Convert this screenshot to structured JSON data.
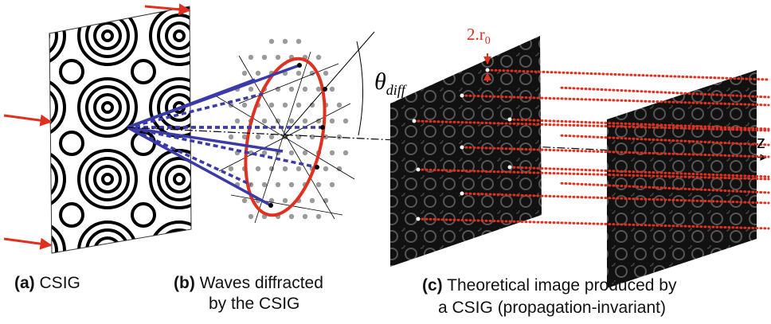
{
  "panels": [
    {
      "label": "(a)",
      "caption": [
        "CSIG"
      ]
    },
    {
      "label": "(b)",
      "caption": [
        "Waves diffracted",
        "by the CSIG"
      ]
    },
    {
      "label": "(c)",
      "caption": [
        "Theoretical image produced by",
        "a CSIG (propagation-invariant)"
      ]
    }
  ],
  "annotations": {
    "angle": {
      "symbol": "θ",
      "subscript": "diff"
    },
    "radius": {
      "main": "2.r",
      "subscript": "0"
    },
    "axis": "z"
  }
}
